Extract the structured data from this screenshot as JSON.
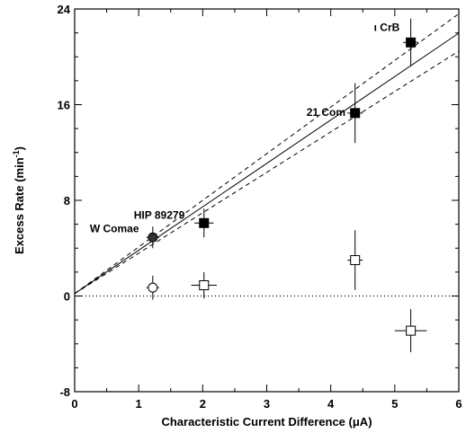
{
  "chart_data": {
    "type": "scatter",
    "title": "",
    "xlabel": "Characteristic Current Difference (μA)",
    "ylabel": "Excess Rate (min",
    "ylabel_sup": "-1",
    "ylabel_tail": ")",
    "xlim": [
      0,
      6
    ],
    "ylim": [
      -8,
      24
    ],
    "xticks": [
      0,
      1,
      2,
      3,
      4,
      5,
      6
    ],
    "yticks": [
      -8,
      0,
      8,
      16,
      24
    ],
    "grid": false,
    "legend": "none",
    "series": [
      {
        "marker": "filled-square",
        "points": [
          {
            "x": 2.02,
            "y": 6.1,
            "xerr": 0.15,
            "yerr": 1.2
          },
          {
            "x": 4.38,
            "y": 15.3,
            "xerr": 0.12,
            "yerr": 2.5
          },
          {
            "x": 5.25,
            "y": 21.2,
            "xerr": 0.12,
            "yerr": 2.0
          }
        ]
      },
      {
        "marker": "filled-circle",
        "points": [
          {
            "x": 1.22,
            "y": 4.9,
            "xerr": 0.1,
            "yerr": 0.9
          }
        ]
      },
      {
        "marker": "open-square",
        "points": [
          {
            "x": 2.02,
            "y": 0.9,
            "xerr": 0.2,
            "yerr": 1.1
          },
          {
            "x": 4.38,
            "y": 3.0,
            "xerr": 0.12,
            "yerr": 2.5
          },
          {
            "x": 5.25,
            "y": -2.9,
            "xerr": 0.25,
            "yerr": 1.8
          }
        ]
      },
      {
        "marker": "open-circle",
        "points": [
          {
            "x": 1.22,
            "y": 0.7,
            "xerr": 0.1,
            "yerr": 1.0
          }
        ]
      }
    ],
    "fit_lines": [
      {
        "style": "solid",
        "slope": 3.63,
        "intercept": 0.2
      },
      {
        "style": "dashed",
        "slope": 3.9,
        "intercept": 0.2
      },
      {
        "style": "dashed",
        "slope": 3.38,
        "intercept": 0.2
      }
    ],
    "reference_lines": [
      {
        "style": "dotted",
        "y": 0
      }
    ],
    "annotations": [
      {
        "text": "ι CrB",
        "x": 5.25,
        "y": 21.2
      },
      {
        "text": "21 Com",
        "x": 4.38,
        "y": 15.3
      },
      {
        "text": "HIP 89279",
        "x": 2.02,
        "y": 6.1
      },
      {
        "text": "W Comae",
        "x": 1.22,
        "y": 4.9
      }
    ]
  }
}
